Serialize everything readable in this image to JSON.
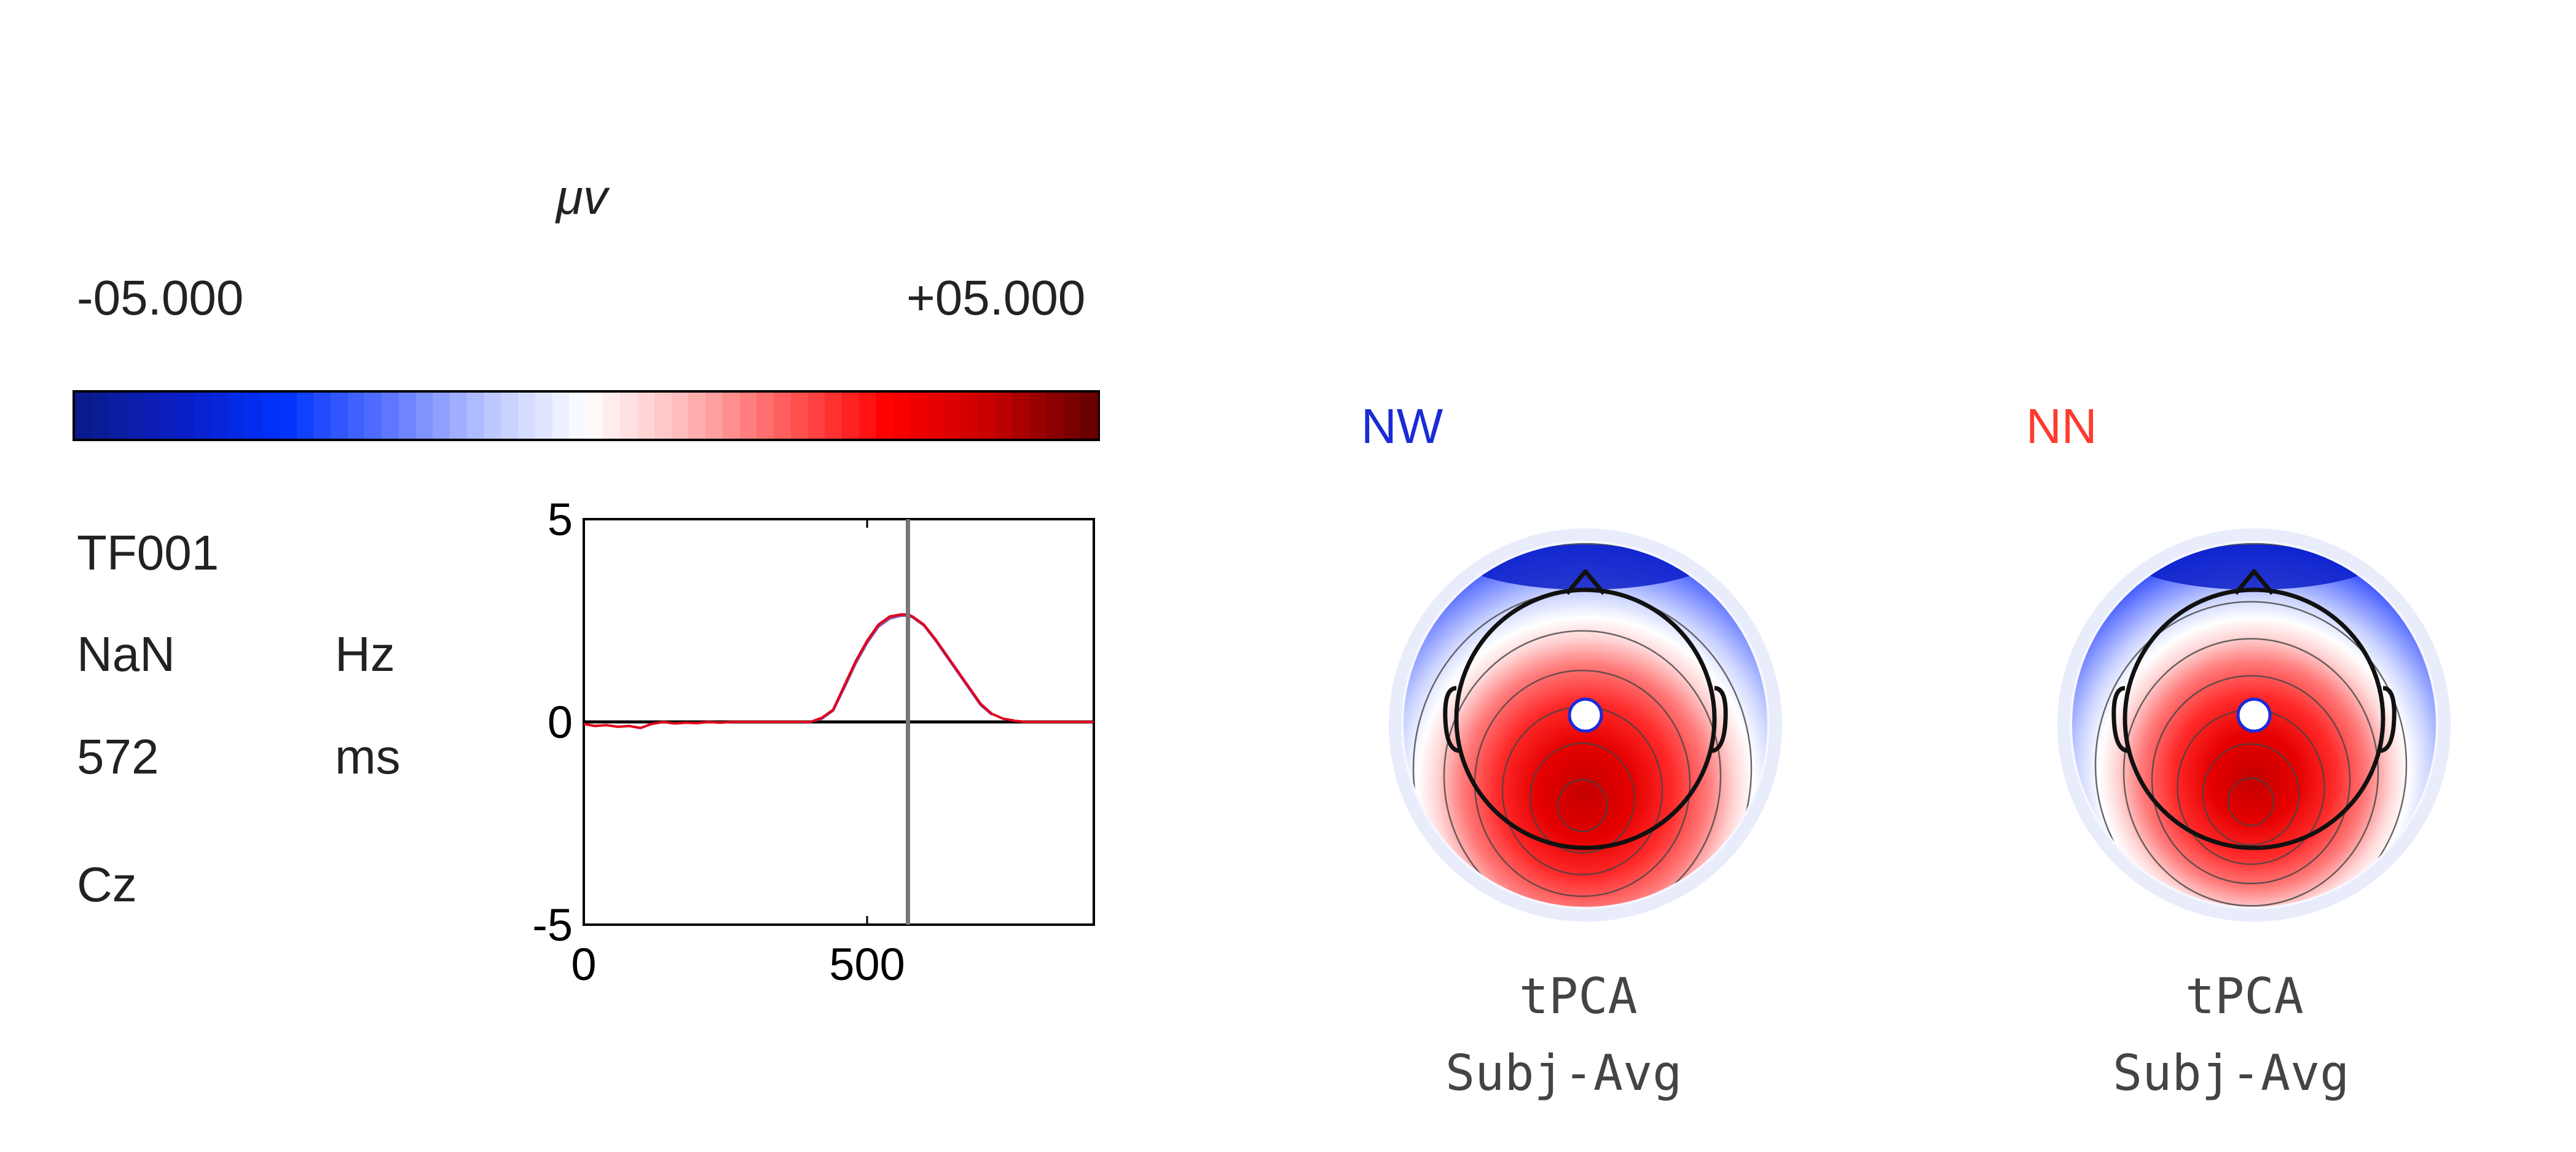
{
  "colorbar": {
    "unit": "μv",
    "min_label": "-05.000",
    "max_label": "+05.000",
    "colors": [
      "#0a1a8c",
      "#0b1fc8",
      "#0033ff",
      "#5a73ff",
      "#b8c4ff",
      "#ffffff",
      "#ffb8b8",
      "#ff5a5a",
      "#ff0000",
      "#c80000",
      "#6b0000"
    ]
  },
  "info": {
    "factor": "TF001",
    "frequency_value": "NaN",
    "frequency_unit": "Hz",
    "time_value": "572",
    "time_unit": "ms",
    "channel": "Cz"
  },
  "chart_data": {
    "type": "line",
    "title": "",
    "xlabel": "",
    "ylabel": "",
    "xlim": [
      0,
      900
    ],
    "ylim": [
      -5,
      5
    ],
    "x_ticks": [
      "0",
      "500"
    ],
    "y_ticks": [
      "5",
      "0",
      "-5"
    ],
    "cursor_x": 572,
    "series": [
      {
        "color": "#e0001b",
        "x": [
          0,
          20,
          40,
          60,
          80,
          100,
          120,
          140,
          160,
          180,
          200,
          220,
          240,
          260,
          280,
          300,
          320,
          340,
          360,
          380,
          400,
          420,
          440,
          460,
          480,
          500,
          520,
          540,
          560,
          572,
          580,
          600,
          620,
          640,
          660,
          680,
          700,
          720,
          740,
          760,
          780,
          800,
          820,
          840,
          860,
          880,
          900
        ],
        "y": [
          -0.05,
          -0.1,
          -0.08,
          -0.12,
          -0.1,
          -0.15,
          -0.05,
          0,
          -0.04,
          -0.02,
          -0.03,
          0,
          -0.02,
          0,
          0,
          0,
          0,
          0,
          0,
          0,
          0,
          0.1,
          0.3,
          0.9,
          1.5,
          2.0,
          2.4,
          2.6,
          2.65,
          2.65,
          2.6,
          2.4,
          2.05,
          1.65,
          1.25,
          0.85,
          0.45,
          0.2,
          0.08,
          0.03,
          0,
          0,
          0,
          0,
          0,
          0,
          0
        ]
      },
      {
        "color": "#8a55aa",
        "x": [
          400,
          420,
          440,
          460,
          480,
          500,
          520,
          540,
          560,
          572,
          580,
          600,
          620,
          640,
          660,
          680,
          700,
          720
        ],
        "y": [
          0,
          0.08,
          0.28,
          0.85,
          1.45,
          1.95,
          2.35,
          2.55,
          2.62,
          2.62,
          2.58,
          2.38,
          2.02,
          1.62,
          1.22,
          0.82,
          0.42,
          0.18
        ]
      }
    ]
  },
  "topomaps": [
    {
      "condition": "NW",
      "condition_color": "#1a2bd6",
      "caption_line1": "tPCA",
      "caption_line2": "Subj-Avg",
      "center_y_offset": 0.08,
      "spread": 1.0
    },
    {
      "condition": "NN",
      "condition_color": "#ff3b2f",
      "caption_line1": "tPCA",
      "caption_line2": "Subj-Avg",
      "center_y_offset": 0.05,
      "spread": 0.92
    }
  ]
}
